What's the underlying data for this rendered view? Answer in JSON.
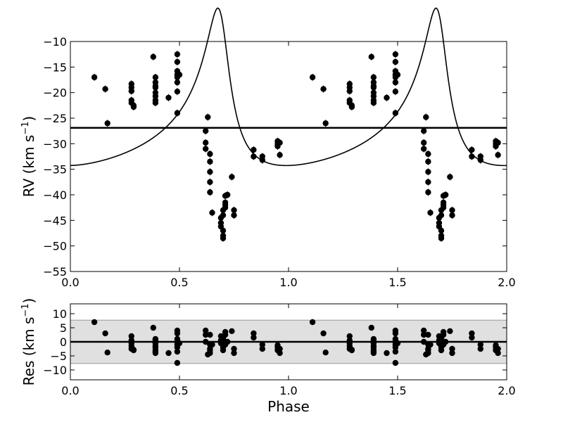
{
  "chart_data": [
    {
      "type": "scatter",
      "panel": "top",
      "xlabel": "Phase",
      "ylabel": "RV (km s",
      "ylabel_sup": "−1",
      "ylabel_end": ")",
      "xlim": [
        0.0,
        2.0
      ],
      "ylim": [
        -55,
        -10
      ],
      "xticks": [
        "0.0",
        "0.5",
        "1.0",
        "1.5",
        "2.0"
      ],
      "yticks": [
        "−10",
        "−15",
        "−20",
        "−25",
        "−30",
        "−35",
        "−40",
        "−45",
        "−50",
        "−55"
      ],
      "systemic_velocity": -26.9,
      "series": [
        {
          "kind": "points",
          "phase": [
            0.11,
            0.16,
            0.17,
            0.28,
            0.28,
            0.28,
            0.28,
            0.28,
            0.29,
            0.29,
            0.38,
            0.39,
            0.39,
            0.39,
            0.39,
            0.39,
            0.39,
            0.39,
            0.39,
            0.45,
            0.49,
            0.49,
            0.49,
            0.49,
            0.49,
            0.49,
            0.49,
            0.49,
            0.5,
            0.62,
            0.62,
            0.62,
            0.63,
            0.64,
            0.64,
            0.64,
            0.64,
            0.64,
            0.65,
            0.69,
            0.69,
            0.69,
            0.7,
            0.7,
            0.7,
            0.7,
            0.7,
            0.71,
            0.71,
            0.71,
            0.71,
            0.72,
            0.74,
            0.75,
            0.75,
            0.84,
            0.84,
            0.88,
            0.88,
            0.95,
            0.95,
            0.95,
            0.96,
            0.96
          ],
          "rv": [
            -17.0,
            -19.3,
            -26.0,
            -18.3,
            -19.0,
            -19.7,
            -21.5,
            -22.0,
            -22.8,
            -22.5,
            -13.0,
            -17.0,
            -18.0,
            -18.7,
            -19.0,
            -20.0,
            -20.7,
            -21.5,
            -22.0,
            -21.0,
            -12.5,
            -14.0,
            -15.8,
            -16.5,
            -17.0,
            -18.0,
            -19.8,
            -24.0,
            -16.5,
            -29.8,
            -31.0,
            -27.5,
            -24.8,
            -32.0,
            -33.5,
            -35.5,
            -37.5,
            -39.5,
            -43.5,
            -44.5,
            -45.5,
            -46.2,
            -47.0,
            -48.0,
            -48.5,
            -44.0,
            -43.0,
            -42.0,
            -41.5,
            -40.2,
            -42.5,
            -40.0,
            -36.5,
            -43.0,
            -44.0,
            -31.2,
            -32.5,
            -32.5,
            -33.2,
            -29.5,
            -30.0,
            -30.5,
            -32.2,
            -29.8
          ]
        },
        {
          "kind": "orbit_model",
          "period_phase": 1.0,
          "eccentricity": 0.58,
          "omega_deg": 26,
          "K": 15.4,
          "phase_periastron": 0.692
        },
        {
          "kind": "horizontal_line",
          "y": -26.9
        }
      ]
    },
    {
      "type": "scatter",
      "panel": "bottom",
      "xlabel": "Phase",
      "ylabel": "Res (km s",
      "ylabel_sup": "−1",
      "ylabel_end": ")",
      "xlim": [
        0.0,
        2.0
      ],
      "ylim": [
        -13.5,
        13.5
      ],
      "xticks": [
        "0.0",
        "0.5",
        "1.0",
        "1.5",
        "2.0"
      ],
      "yticks": [
        "10",
        "5",
        "0",
        "−5",
        "−10"
      ],
      "band": [
        -7.7,
        7.7
      ],
      "residuals": [
        7.0,
        3.0,
        -3.8,
        2.0,
        0.5,
        -0.5,
        -1.5,
        -2.5,
        -3.0,
        -2.8,
        5.0,
        1.0,
        0.5,
        -0.5,
        -1.5,
        -2.0,
        -3.0,
        -3.5,
        -4.0,
        -4.0,
        4.0,
        3.0,
        1.0,
        0.0,
        -1.0,
        -2.0,
        -3.5,
        -7.5,
        -0.5,
        4.0,
        2.5,
        0.0,
        -4.5,
        -3.0,
        -2.5,
        -4.0,
        -1.0,
        2.5,
        -1.0,
        2.0,
        0.5,
        -0.5,
        -1.5,
        -2.0,
        -3.0,
        1.5,
        1.0,
        0.0,
        -1.0,
        3.5,
        2.5,
        0.0,
        3.8,
        -2.5,
        -4.0,
        3.0,
        1.5,
        -1.0,
        -2.5,
        -1.2,
        -2.0,
        -3.0,
        -4.0,
        -2.5
      ]
    }
  ]
}
